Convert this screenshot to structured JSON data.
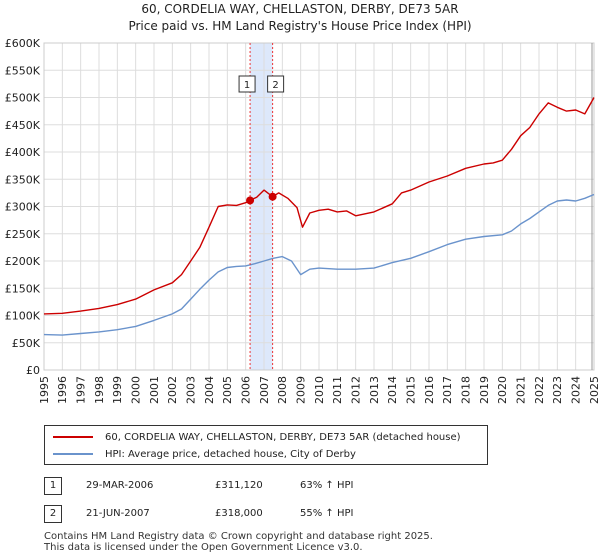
{
  "title_line1": "60, CORDELIA WAY, CHELLASTON, DERBY, DE73 5AR",
  "title_line2": "Price paid vs. HM Land Registry's House Price Index (HPI)",
  "colors": {
    "property": "#cc0000",
    "hpi": "#6a93cc",
    "grid": "#dddddd",
    "shade": "#dde8fb",
    "marker_line": "#ee3333"
  },
  "chart_data": {
    "type": "line",
    "ylim": [
      0,
      600000
    ],
    "xlim": [
      1995,
      2025
    ],
    "y_ticks": [
      0,
      50000,
      100000,
      150000,
      200000,
      250000,
      300000,
      350000,
      400000,
      450000,
      500000,
      550000,
      600000
    ],
    "y_tick_labels": [
      "£0",
      "£50K",
      "£100K",
      "£150K",
      "£200K",
      "£250K",
      "£300K",
      "£350K",
      "£400K",
      "£450K",
      "£500K",
      "£550K",
      "£600K"
    ],
    "x_ticks": [
      "1995",
      "1996",
      "1997",
      "1998",
      "1999",
      "2000",
      "2001",
      "2002",
      "2003",
      "2004",
      "2005",
      "2006",
      "2007",
      "2008",
      "2009",
      "2010",
      "2011",
      "2012",
      "2013",
      "2014",
      "2015",
      "2016",
      "2017",
      "2018",
      "2019",
      "2020",
      "2021",
      "2022",
      "2023",
      "2024",
      "2025"
    ],
    "grid": true,
    "shaded_period": [
      2006.24,
      2007.47
    ],
    "series": [
      {
        "name": "60, CORDELIA WAY, CHELLASTON, DERBY, DE73 5AR (detached house)",
        "x": [
          1995,
          1996,
          1997,
          1998,
          1999,
          2000,
          2001,
          2002,
          2002.5,
          2003,
          2003.5,
          2004,
          2004.5,
          2005,
          2005.5,
          2006,
          2006.24,
          2006.6,
          2007,
          2007.47,
          2007.8,
          2008.3,
          2008.8,
          2009.1,
          2009.5,
          2010,
          2010.5,
          2011,
          2011.5,
          2012,
          2013,
          2014,
          2014.5,
          2015,
          2016,
          2017,
          2018,
          2019,
          2019.5,
          2020,
          2020.5,
          2021,
          2021.5,
          2022,
          2022.5,
          2023,
          2023.5,
          2024,
          2024.5,
          2025
        ],
        "values": [
          103000,
          104000,
          108000,
          113000,
          120000,
          130000,
          147000,
          160000,
          175000,
          200000,
          225000,
          262000,
          300000,
          303000,
          302000,
          307000,
          311120,
          317000,
          330000,
          318000,
          325000,
          315000,
          298000,
          262000,
          288000,
          293000,
          295000,
          290000,
          292000,
          283000,
          290000,
          305000,
          325000,
          330000,
          345000,
          356000,
          370000,
          378000,
          380000,
          385000,
          405000,
          430000,
          445000,
          470000,
          490000,
          482000,
          475000,
          477000,
          470000,
          500000
        ]
      },
      {
        "name": "HPI: Average price, detached house, City of Derby",
        "x": [
          1995,
          1996,
          1997,
          1998,
          1999,
          2000,
          2001,
          2002,
          2002.5,
          2003,
          2003.5,
          2004,
          2004.5,
          2005,
          2005.5,
          2006,
          2006.5,
          2007,
          2007.5,
          2008,
          2008.5,
          2009,
          2009.5,
          2010,
          2011,
          2012,
          2013,
          2014,
          2015,
          2016,
          2017,
          2018,
          2019,
          2020,
          2020.5,
          2021,
          2021.5,
          2022,
          2022.5,
          2023,
          2023.5,
          2024,
          2024.5,
          2025
        ],
        "values": [
          65000,
          64000,
          67000,
          70000,
          74000,
          80000,
          91000,
          103000,
          112000,
          130000,
          148000,
          165000,
          180000,
          188000,
          190000,
          191000,
          195000,
          200000,
          205000,
          208000,
          200000,
          175000,
          185000,
          187000,
          185000,
          185000,
          187000,
          197000,
          205000,
          217000,
          230000,
          240000,
          245000,
          248000,
          255000,
          268000,
          278000,
          290000,
          302000,
          310000,
          312000,
          310000,
          315000,
          322000
        ]
      }
    ],
    "annotations": [
      {
        "label": "1",
        "x": 2006.24,
        "y": 311120
      },
      {
        "label": "2",
        "x": 2007.47,
        "y": 318000
      }
    ]
  },
  "legend": {
    "property_label": "60, CORDELIA WAY, CHELLASTON, DERBY, DE73 5AR (detached house)",
    "hpi_label": "HPI: Average price, detached house, City of Derby"
  },
  "transactions": [
    {
      "num": "1",
      "date": "29-MAR-2006",
      "price": "£311,120",
      "pct": "63% ↑ HPI"
    },
    {
      "num": "2",
      "date": "21-JUN-2007",
      "price": "£318,000",
      "pct": "55% ↑ HPI"
    }
  ],
  "footer_line1": "Contains HM Land Registry data © Crown copyright and database right 2025.",
  "footer_line2": "This data is licensed under the Open Government Licence v3.0."
}
